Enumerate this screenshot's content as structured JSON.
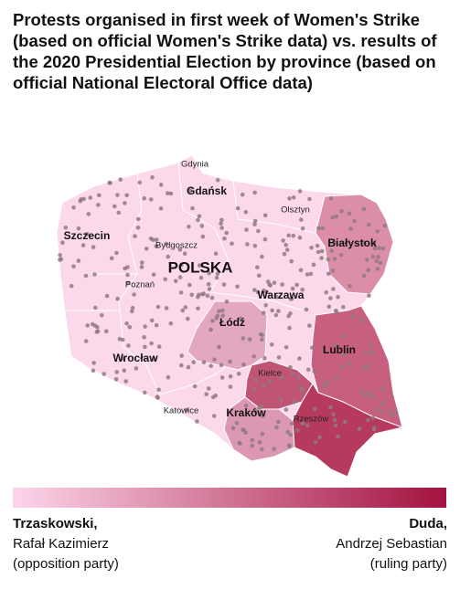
{
  "title": "Protests organised in first week of Women's Strike (based on official Women's Strike data) vs. results of the 2020 Presidential Election by province (based on official National Electoral Office data)",
  "map": {
    "labels": [
      "Gdynia",
      "Gdańsk",
      "Olsztyn",
      "Szczecin",
      "Bydgoszcz",
      "Białystok",
      "POLSKA",
      "Poznań",
      "Warzawa",
      "Łódź",
      "Lublin",
      "Wrocław",
      "Kielce",
      "Katowice",
      "Kraków",
      "Rzeszów"
    ]
  },
  "legend": {
    "left": {
      "name": "Trzaskowski,",
      "first_names": "Rafał Kazimierz",
      "party": "(opposition party)"
    },
    "right": {
      "name": "Duda,",
      "first_names": "Andrzej Sebastian",
      "party": "(ruling party)"
    }
  }
}
